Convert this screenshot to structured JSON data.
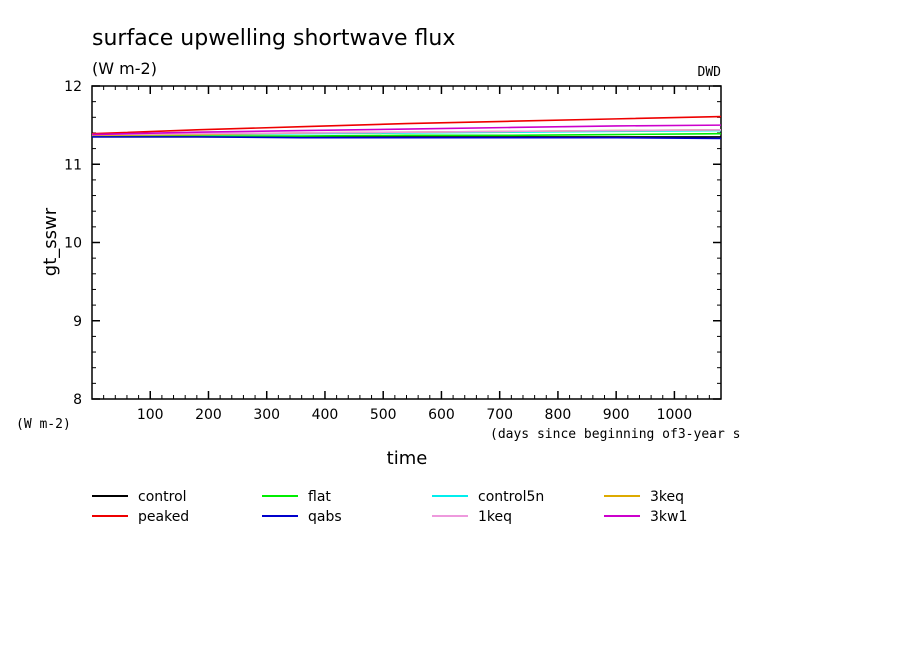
{
  "chart_data": {
    "type": "line",
    "title": "surface upwelling shortwave flux",
    "units": "(W m-2)",
    "institution": "DWD",
    "ylabel": "gt_sswr",
    "ylabel_units": "(W m-2)",
    "xlabel": "time",
    "xlabel_units": "(days since beginning of3-year s",
    "xlim": [
      0,
      1080
    ],
    "ylim": [
      8,
      12
    ],
    "xticks": [
      100,
      200,
      300,
      400,
      500,
      600,
      700,
      800,
      900,
      1000
    ],
    "yticks": [
      8,
      9,
      10,
      11,
      12
    ],
    "x": [
      0,
      180,
      360,
      540,
      720,
      900,
      1080
    ],
    "series": [
      {
        "name": "control",
        "color": "#000000",
        "values": [
          11.35,
          11.35,
          11.35,
          11.35,
          11.35,
          11.35,
          11.35
        ]
      },
      {
        "name": "flat",
        "color": "#00ee00",
        "values": [
          11.36,
          11.36,
          11.36,
          11.37,
          11.37,
          11.38,
          11.39
        ]
      },
      {
        "name": "control5n",
        "color": "#00eeee",
        "values": [
          11.37,
          11.38,
          11.39,
          11.4,
          11.41,
          11.42,
          11.43
        ]
      },
      {
        "name": "3keq",
        "color": "#ddaa00",
        "values": [
          11.37,
          11.38,
          11.4,
          11.41,
          11.42,
          11.43,
          11.44
        ]
      },
      {
        "name": "peaked",
        "color": "#ee0000",
        "values": [
          11.39,
          11.44,
          11.48,
          11.52,
          11.55,
          11.58,
          11.61
        ]
      },
      {
        "name": "qabs",
        "color": "#0000cc",
        "values": [
          11.35,
          11.35,
          11.34,
          11.34,
          11.34,
          11.34,
          11.33
        ]
      },
      {
        "name": "1keq",
        "color": "#ee99dd",
        "values": [
          11.38,
          11.39,
          11.4,
          11.41,
          11.42,
          11.43,
          11.44
        ]
      },
      {
        "name": "3kw1",
        "color": "#cc00cc",
        "values": [
          11.38,
          11.41,
          11.43,
          11.45,
          11.47,
          11.49,
          11.5
        ]
      }
    ]
  }
}
